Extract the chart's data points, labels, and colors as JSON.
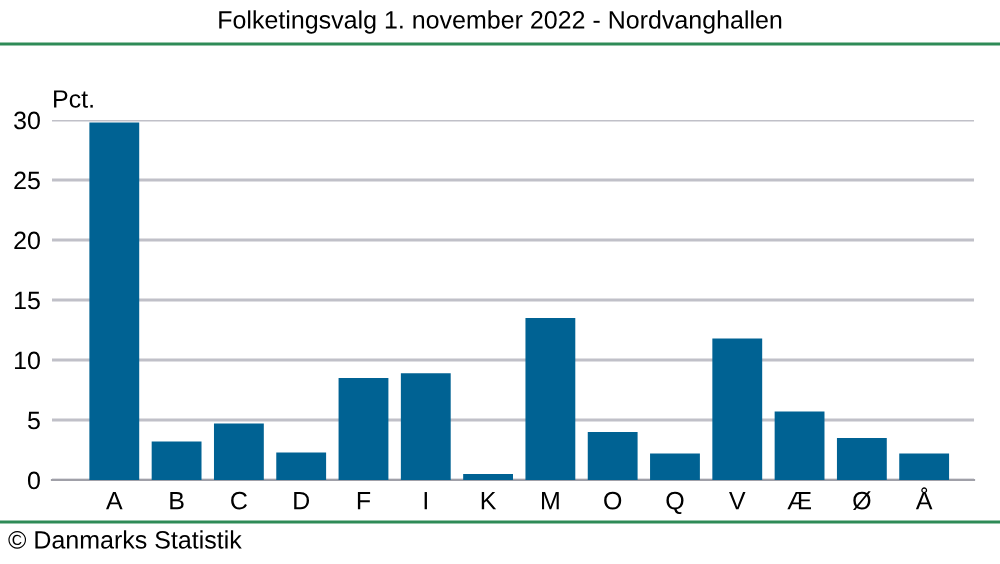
{
  "chart_data": {
    "type": "bar",
    "title": "Folketingsvalg 1. november 2022 - Nordvanghallen",
    "ylabel": "Pct.",
    "categories": [
      "A",
      "B",
      "C",
      "D",
      "F",
      "I",
      "K",
      "M",
      "O",
      "Q",
      "V",
      "Æ",
      "Ø",
      "Å"
    ],
    "values": [
      29.8,
      3.2,
      4.7,
      2.3,
      8.5,
      8.9,
      0.5,
      13.5,
      4.0,
      2.2,
      11.8,
      5.7,
      3.5,
      2.2
    ],
    "color": "#006293",
    "ylim": [
      0,
      30
    ],
    "yticks": [
      0,
      5,
      10,
      15,
      20,
      25,
      30
    ],
    "grid": "y",
    "annotations": [
      "© Danmarks Statistik"
    ]
  }
}
